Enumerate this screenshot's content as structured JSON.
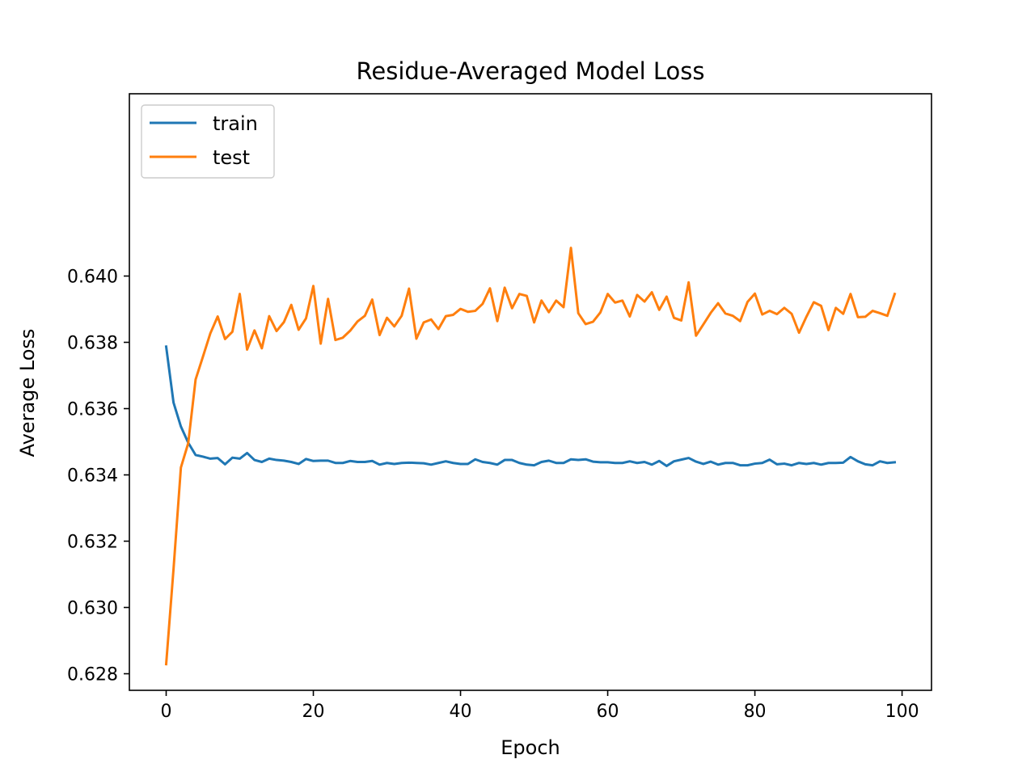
{
  "chart_data": {
    "type": "line",
    "title": "Residue-Averaged Model Loss",
    "xlabel": "Epoch",
    "ylabel": "Average Loss",
    "xlim": [
      -5,
      104
    ],
    "ylim": [
      0.6275,
      0.6455
    ],
    "xticks": [
      0,
      20,
      40,
      60,
      80,
      100
    ],
    "xtick_labels": [
      "0",
      "20",
      "40",
      "60",
      "80",
      "100"
    ],
    "yticks": [
      0.628,
      0.63,
      0.632,
      0.634,
      0.636,
      0.638,
      0.64
    ],
    "ytick_labels": [
      "0.628",
      "0.630",
      "0.632",
      "0.634",
      "0.636",
      "0.638",
      "0.640"
    ],
    "grid": false,
    "legend_position": "top-left",
    "series": [
      {
        "name": "train",
        "color": "#1f77b4",
        "x_start": 0,
        "x_step": 1,
        "values": [
          0.63787,
          0.63618,
          0.63546,
          0.63497,
          0.6346,
          0.63455,
          0.63449,
          0.63451,
          0.63432,
          0.63452,
          0.63449,
          0.63466,
          0.63445,
          0.63439,
          0.63449,
          0.63445,
          0.63443,
          0.63439,
          0.63433,
          0.63448,
          0.63442,
          0.63443,
          0.63443,
          0.63436,
          0.63436,
          0.63442,
          0.63439,
          0.63439,
          0.63442,
          0.63431,
          0.63436,
          0.63433,
          0.63436,
          0.63437,
          0.63436,
          0.63435,
          0.63431,
          0.63436,
          0.63441,
          0.63436,
          0.63433,
          0.63433,
          0.63447,
          0.63439,
          0.63436,
          0.63431,
          0.63445,
          0.63445,
          0.63436,
          0.63431,
          0.63429,
          0.63439,
          0.63443,
          0.63436,
          0.63436,
          0.63447,
          0.63445,
          0.63447,
          0.6344,
          0.63438,
          0.63438,
          0.63436,
          0.63436,
          0.63441,
          0.63436,
          0.63439,
          0.63431,
          0.63442,
          0.63427,
          0.63441,
          0.63446,
          0.63451,
          0.6344,
          0.63433,
          0.6344,
          0.63431,
          0.63436,
          0.63436,
          0.63429,
          0.63429,
          0.63434,
          0.63436,
          0.63446,
          0.63432,
          0.63434,
          0.63429,
          0.63436,
          0.63433,
          0.63436,
          0.63431,
          0.63436,
          0.63436,
          0.63437,
          0.63454,
          0.63441,
          0.63432,
          0.63429,
          0.63441,
          0.63436,
          0.63438
        ]
      },
      {
        "name": "test",
        "color": "#ff7f0e",
        "x_start": 0,
        "x_step": 1,
        "values": [
          0.62829,
          0.63116,
          0.63422,
          0.63496,
          0.63688,
          0.63757,
          0.63827,
          0.63878,
          0.6381,
          0.63832,
          0.63946,
          0.63778,
          0.63836,
          0.63782,
          0.63879,
          0.63834,
          0.63861,
          0.63913,
          0.63838,
          0.63872,
          0.6397,
          0.63796,
          0.63931,
          0.63807,
          0.63814,
          0.63835,
          0.63863,
          0.6388,
          0.63929,
          0.63822,
          0.63874,
          0.63848,
          0.6388,
          0.63962,
          0.63811,
          0.6386,
          0.63869,
          0.6384,
          0.63879,
          0.63883,
          0.63901,
          0.63892,
          0.63895,
          0.63916,
          0.63963,
          0.63864,
          0.63965,
          0.63903,
          0.63946,
          0.6394,
          0.6386,
          0.63926,
          0.63891,
          0.63926,
          0.63906,
          0.64085,
          0.63888,
          0.63855,
          0.63862,
          0.6389,
          0.63946,
          0.6392,
          0.63926,
          0.63878,
          0.63943,
          0.63923,
          0.63951,
          0.63898,
          0.63938,
          0.63874,
          0.63866,
          0.63981,
          0.6382,
          0.63854,
          0.63889,
          0.63918,
          0.63887,
          0.6388,
          0.63864,
          0.63922,
          0.63947,
          0.63884,
          0.63895,
          0.63885,
          0.63904,
          0.63886,
          0.63829,
          0.63877,
          0.63921,
          0.6391,
          0.63837,
          0.63904,
          0.63886,
          0.63946,
          0.63876,
          0.63877,
          0.63895,
          0.63888,
          0.6388,
          0.63946
        ]
      }
    ]
  }
}
